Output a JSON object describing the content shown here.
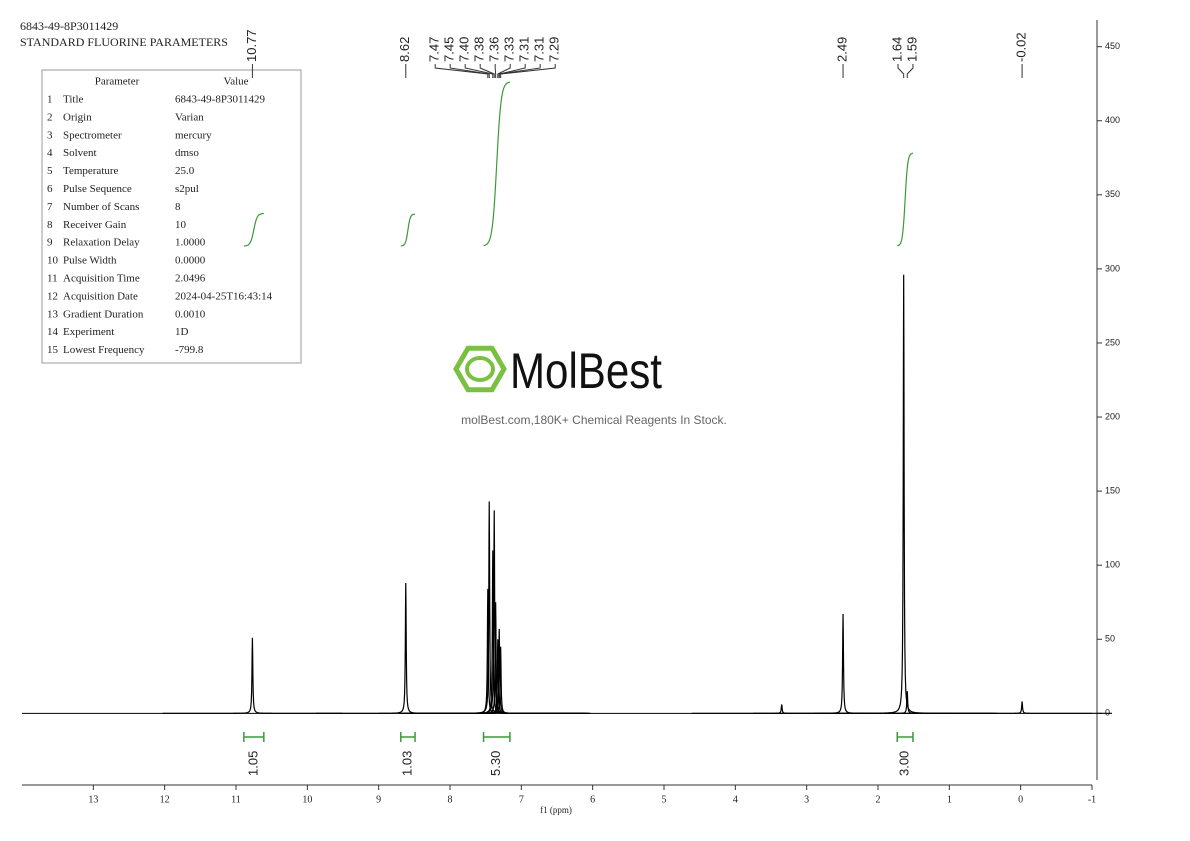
{
  "header": {
    "sample": "6843-49-8P3011429",
    "experiment": "STANDARD FLUORINE PARAMETERS"
  },
  "parameters": {
    "columns": [
      "Parameter",
      "Value"
    ],
    "rows": [
      [
        "1",
        "Title",
        "6843-49-8P3011429"
      ],
      [
        "2",
        "Origin",
        "Varian"
      ],
      [
        "3",
        "Spectrometer",
        "mercury"
      ],
      [
        "4",
        "Solvent",
        "dmso"
      ],
      [
        "5",
        "Temperature",
        "25.0"
      ],
      [
        "6",
        "Pulse Sequence",
        "s2pul"
      ],
      [
        "7",
        "Number of Scans",
        "8"
      ],
      [
        "8",
        "Receiver Gain",
        "10"
      ],
      [
        "9",
        "Relaxation Delay",
        "1.0000"
      ],
      [
        "10",
        "Pulse Width",
        "0.0000"
      ],
      [
        "11",
        "Acquisition Time",
        "2.0496"
      ],
      [
        "12",
        "Acquisition Date",
        "2024-04-25T16:43:14"
      ],
      [
        "13",
        "Gradient Duration",
        "0.0010"
      ],
      [
        "14",
        "Experiment",
        "1D"
      ],
      [
        "15",
        "Lowest Frequency",
        "-799.8"
      ]
    ]
  },
  "watermark": {
    "brand": "MolBest",
    "tagline": "molBest.com,180K+ Chemical Reagents In Stock."
  },
  "chart_data": {
    "type": "nmr",
    "x_label": "f1 (ppm)",
    "color": "#000000",
    "x": [
      10.77,
      8.62,
      7.47,
      7.45,
      7.4,
      7.38,
      7.36,
      7.33,
      7.31,
      7.29,
      3.35,
      2.49,
      1.64,
      1.59,
      -0.02
    ],
    "values": [
      51,
      88,
      84,
      143,
      110,
      137,
      75,
      50,
      57,
      45,
      6,
      67,
      296,
      15,
      8
    ],
    "peak_labels": [
      10.77,
      8.62,
      7.47,
      7.45,
      {
        "value": 7.4,
        "label": "7.40"
      },
      7.38,
      7.36,
      7.33,
      7.31,
      7.31,
      7.29,
      2.49,
      1.64,
      1.59,
      -0.02
    ],
    "integrals": {
      "color": "#3a9a3a",
      "ranges": [
        [
          10.89,
          10.61
        ],
        [
          8.69,
          8.49
        ],
        [
          7.53,
          7.16
        ],
        [
          1.73,
          1.51
        ]
      ],
      "values": [
        1.05,
        1.03,
        5.3,
        3
      ],
      "value_labels": [
        "1.05",
        "1.03",
        "5.30",
        "3.00"
      ]
    },
    "xlim": [
      14,
      -1
    ],
    "xticks": [
      13,
      12,
      11,
      10,
      9,
      8,
      7,
      6,
      5,
      4,
      3,
      2,
      1,
      0,
      -1
    ],
    "ylim": [
      -45,
      468
    ],
    "yticks": [
      0,
      50,
      100,
      150,
      200,
      250,
      300,
      350,
      400,
      450
    ],
    "grid": false
  }
}
